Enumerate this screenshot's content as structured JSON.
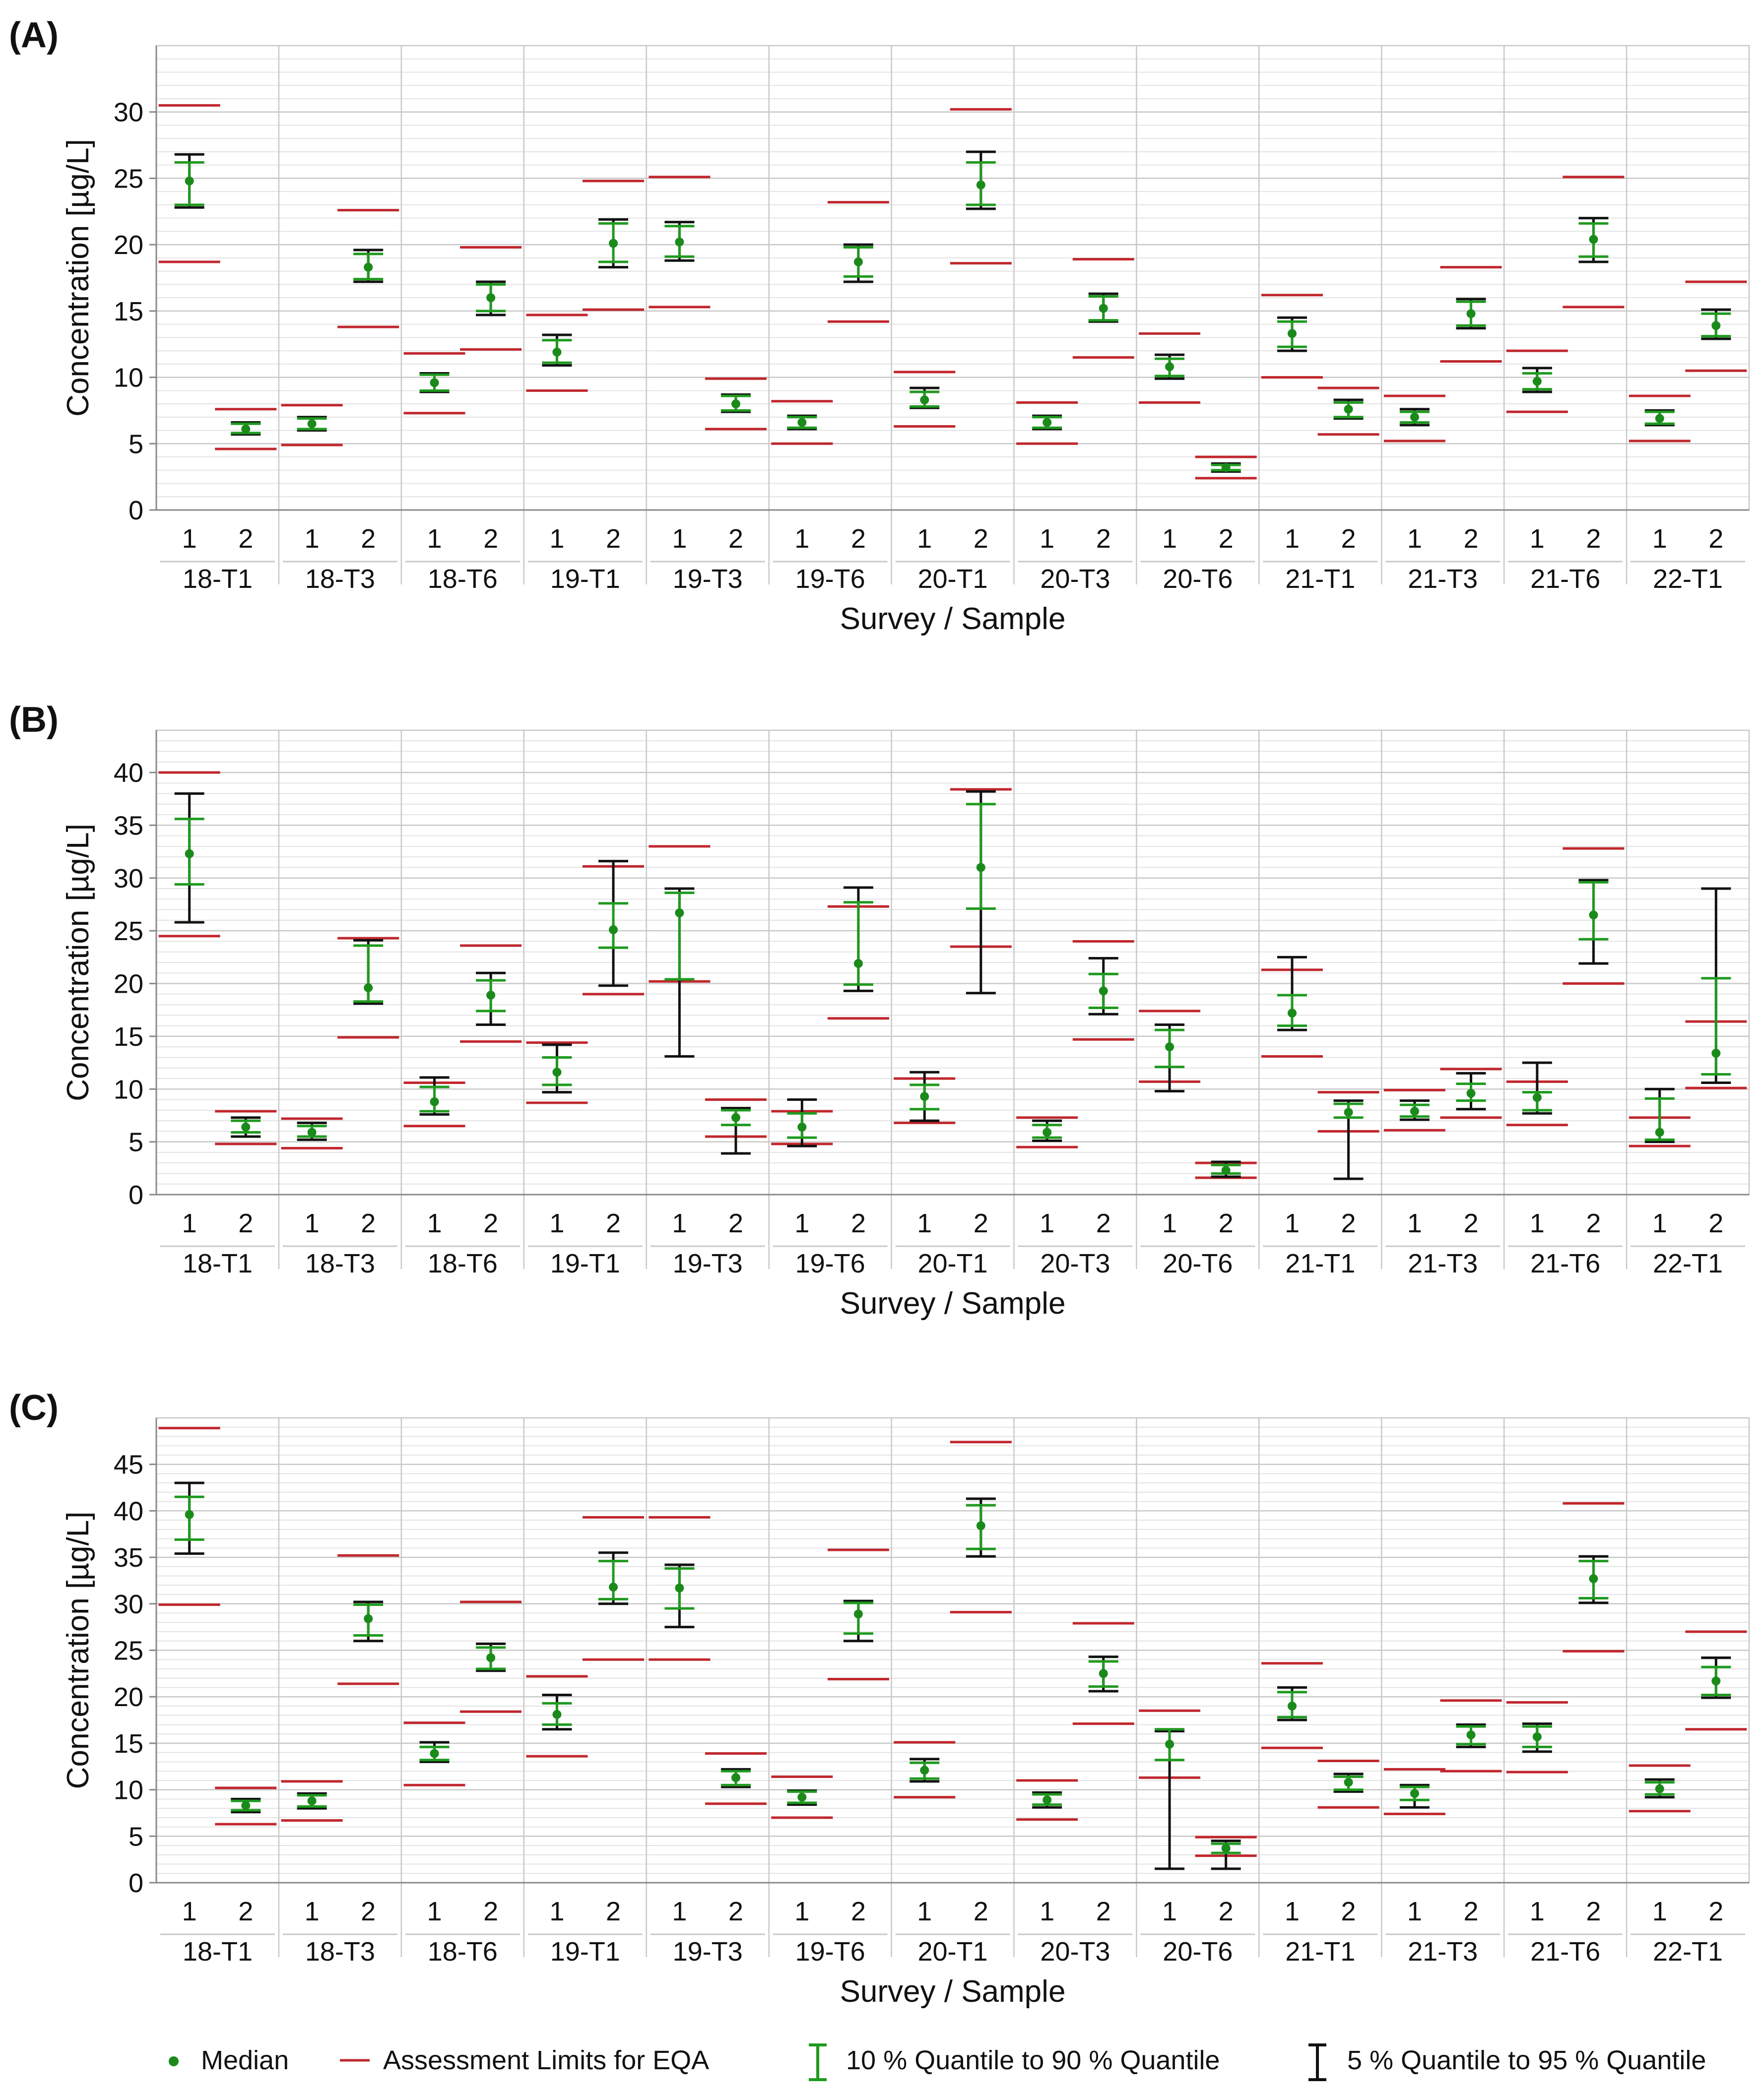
{
  "colors": {
    "median": "#1a8a1a",
    "q10_90": "#1f9a1f",
    "q5_95": "#111111",
    "limits": "#c0272d",
    "grid": "#c8c8c8",
    "axis": "#888888",
    "text": "#111111"
  },
  "legend": {
    "median": "Median",
    "limits": "Assessment Limits for EQA",
    "q10_90": "10 % Quantile to 90 % Quantile",
    "q5_95": "5 % Quantile to 95 % Quantile"
  },
  "chart_data": [
    {
      "type": "errorbar",
      "panel_label": "(A)",
      "ylabel": "Concentration [µg/L]",
      "xlabel": "Survey / Sample",
      "ylim": [
        0,
        35
      ],
      "yticks": [
        0,
        5,
        10,
        15,
        20,
        25,
        30
      ],
      "sample_labels": [
        "1",
        "2"
      ],
      "groups": [
        "18-T1",
        "18-T3",
        "18-T6",
        "19-T1",
        "19-T3",
        "19-T6",
        "20-T1",
        "20-T3",
        "20-T6",
        "21-T1",
        "21-T3",
        "21-T6",
        "22-T1"
      ],
      "points": [
        {
          "median": 24.8,
          "q10": 23.0,
          "q90": 26.2,
          "q5": 22.8,
          "q95": 26.8,
          "lo": 18.7,
          "hi": 30.5
        },
        {
          "median": 6.1,
          "q10": 5.8,
          "q90": 6.5,
          "q5": 5.7,
          "q95": 6.6,
          "lo": 4.6,
          "hi": 7.6
        },
        {
          "median": 6.5,
          "q10": 6.1,
          "q90": 6.9,
          "q5": 6.0,
          "q95": 7.0,
          "lo": 4.9,
          "hi": 7.9
        },
        {
          "median": 18.3,
          "q10": 17.4,
          "q90": 19.3,
          "q5": 17.2,
          "q95": 19.6,
          "lo": 13.8,
          "hi": 22.6
        },
        {
          "median": 9.6,
          "q10": 9.0,
          "q90": 10.2,
          "q5": 8.9,
          "q95": 10.3,
          "lo": 7.3,
          "hi": 11.8
        },
        {
          "median": 16.0,
          "q10": 15.0,
          "q90": 17.0,
          "q5": 14.7,
          "q95": 17.2,
          "lo": 12.1,
          "hi": 19.8
        },
        {
          "median": 11.9,
          "q10": 11.1,
          "q90": 12.8,
          "q5": 10.9,
          "q95": 13.2,
          "lo": 9.0,
          "hi": 14.7
        },
        {
          "median": 20.1,
          "q10": 18.7,
          "q90": 21.6,
          "q5": 18.3,
          "q95": 21.9,
          "lo": 15.1,
          "hi": 24.8
        },
        {
          "median": 20.2,
          "q10": 19.1,
          "q90": 21.4,
          "q5": 18.8,
          "q95": 21.7,
          "lo": 15.3,
          "hi": 25.1
        },
        {
          "median": 8.0,
          "q10": 7.5,
          "q90": 8.6,
          "q5": 7.4,
          "q95": 8.7,
          "lo": 6.1,
          "hi": 9.9
        },
        {
          "median": 6.6,
          "q10": 6.2,
          "q90": 7.0,
          "q5": 6.1,
          "q95": 7.1,
          "lo": 5.0,
          "hi": 8.2
        },
        {
          "median": 18.7,
          "q10": 17.6,
          "q90": 19.8,
          "q5": 17.2,
          "q95": 20.0,
          "lo": 14.2,
          "hi": 23.2
        },
        {
          "median": 8.3,
          "q10": 7.8,
          "q90": 8.9,
          "q5": 7.7,
          "q95": 9.2,
          "lo": 6.3,
          "hi": 10.4
        },
        {
          "median": 24.5,
          "q10": 23.0,
          "q90": 26.2,
          "q5": 22.7,
          "q95": 27.0,
          "lo": 18.6,
          "hi": 30.2
        },
        {
          "median": 6.6,
          "q10": 6.2,
          "q90": 7.0,
          "q5": 6.1,
          "q95": 7.1,
          "lo": 5.0,
          "hi": 8.1
        },
        {
          "median": 15.2,
          "q10": 14.3,
          "q90": 16.1,
          "q5": 14.2,
          "q95": 16.3,
          "lo": 11.5,
          "hi": 18.9
        },
        {
          "median": 10.8,
          "q10": 10.1,
          "q90": 11.4,
          "q5": 9.9,
          "q95": 11.7,
          "lo": 8.1,
          "hi": 13.3
        },
        {
          "median": 3.2,
          "q10": 3.0,
          "q90": 3.4,
          "q5": 2.9,
          "q95": 3.5,
          "lo": 2.4,
          "hi": 4.0
        },
        {
          "median": 13.3,
          "q10": 12.3,
          "q90": 14.2,
          "q5": 12.0,
          "q95": 14.5,
          "lo": 10.0,
          "hi": 16.2
        },
        {
          "median": 7.6,
          "q10": 7.0,
          "q90": 8.1,
          "q5": 6.9,
          "q95": 8.3,
          "lo": 5.7,
          "hi": 9.2
        },
        {
          "median": 7.0,
          "q10": 6.6,
          "q90": 7.4,
          "q5": 6.4,
          "q95": 7.6,
          "lo": 5.2,
          "hi": 8.6
        },
        {
          "median": 14.8,
          "q10": 13.9,
          "q90": 15.7,
          "q5": 13.7,
          "q95": 15.9,
          "lo": 11.2,
          "hi": 18.3
        },
        {
          "median": 9.7,
          "q10": 9.1,
          "q90": 10.3,
          "q5": 8.9,
          "q95": 10.7,
          "lo": 7.4,
          "hi": 12.0
        },
        {
          "median": 20.4,
          "q10": 19.1,
          "q90": 21.6,
          "q5": 18.7,
          "q95": 22.0,
          "lo": 15.3,
          "hi": 25.1
        },
        {
          "median": 6.9,
          "q10": 6.5,
          "q90": 7.4,
          "q5": 6.4,
          "q95": 7.5,
          "lo": 5.2,
          "hi": 8.6
        },
        {
          "median": 13.9,
          "q10": 13.1,
          "q90": 14.8,
          "q5": 12.9,
          "q95": 15.1,
          "lo": 10.5,
          "hi": 17.2
        }
      ]
    },
    {
      "type": "errorbar",
      "panel_label": "(B)",
      "ylabel": "Concentration [µg/L]",
      "xlabel": "Survey / Sample",
      "ylim": [
        0,
        44
      ],
      "yticks": [
        0,
        5,
        10,
        15,
        20,
        25,
        30,
        35,
        40
      ],
      "sample_labels": [
        "1",
        "2"
      ],
      "groups": [
        "18-T1",
        "18-T3",
        "18-T6",
        "19-T1",
        "19-T3",
        "19-T6",
        "20-T1",
        "20-T3",
        "20-T6",
        "21-T1",
        "21-T3",
        "21-T6",
        "22-T1"
      ],
      "points": [
        {
          "median": 32.3,
          "q10": 29.4,
          "q90": 35.6,
          "q5": 25.8,
          "q95": 38.0,
          "lo": 24.5,
          "hi": 40.0
        },
        {
          "median": 6.4,
          "q10": 5.9,
          "q90": 7.0,
          "q5": 5.5,
          "q95": 7.3,
          "lo": 4.8,
          "hi": 7.9
        },
        {
          "median": 5.9,
          "q10": 5.5,
          "q90": 6.5,
          "q5": 5.2,
          "q95": 6.8,
          "lo": 4.4,
          "hi": 7.2
        },
        {
          "median": 19.6,
          "q10": 18.3,
          "q90": 23.6,
          "q5": 18.1,
          "q95": 24.1,
          "lo": 14.9,
          "hi": 24.3
        },
        {
          "median": 8.8,
          "q10": 7.9,
          "q90": 10.2,
          "q5": 7.6,
          "q95": 11.1,
          "lo": 6.5,
          "hi": 10.6
        },
        {
          "median": 18.9,
          "q10": 17.4,
          "q90": 20.3,
          "q5": 16.1,
          "q95": 21.0,
          "lo": 14.5,
          "hi": 23.6
        },
        {
          "median": 11.6,
          "q10": 10.4,
          "q90": 13.0,
          "q5": 9.7,
          "q95": 14.2,
          "lo": 8.7,
          "hi": 14.4
        },
        {
          "median": 25.1,
          "q10": 23.4,
          "q90": 27.6,
          "q5": 19.8,
          "q95": 31.6,
          "lo": 19.0,
          "hi": 31.1
        },
        {
          "median": 26.7,
          "q10": 20.4,
          "q90": 28.6,
          "q5": 13.1,
          "q95": 29.0,
          "lo": 20.2,
          "hi": 33.0
        },
        {
          "median": 7.3,
          "q10": 6.6,
          "q90": 8.0,
          "q5": 3.9,
          "q95": 8.2,
          "lo": 5.5,
          "hi": 9.0
        },
        {
          "median": 6.4,
          "q10": 5.4,
          "q90": 7.7,
          "q5": 4.6,
          "q95": 9.0,
          "lo": 4.8,
          "hi": 7.9
        },
        {
          "median": 21.9,
          "q10": 19.9,
          "q90": 27.7,
          "q5": 19.3,
          "q95": 29.1,
          "lo": 16.7,
          "hi": 27.3
        },
        {
          "median": 9.3,
          "q10": 8.1,
          "q90": 10.4,
          "q5": 7.0,
          "q95": 11.6,
          "lo": 6.8,
          "hi": 11.0
        },
        {
          "median": 31.0,
          "q10": 27.1,
          "q90": 37.0,
          "q5": 19.1,
          "q95": 38.2,
          "lo": 23.5,
          "hi": 38.4
        },
        {
          "median": 5.9,
          "q10": 5.4,
          "q90": 6.6,
          "q5": 5.1,
          "q95": 7.0,
          "lo": 4.5,
          "hi": 7.3
        },
        {
          "median": 19.3,
          "q10": 17.7,
          "q90": 20.9,
          "q5": 17.1,
          "q95": 22.4,
          "lo": 14.7,
          "hi": 24.0
        },
        {
          "median": 14.0,
          "q10": 12.1,
          "q90": 15.6,
          "q5": 9.8,
          "q95": 16.1,
          "lo": 10.7,
          "hi": 17.4
        },
        {
          "median": 2.3,
          "q10": 2.0,
          "q90": 2.8,
          "q5": 1.7,
          "q95": 3.1,
          "lo": 1.6,
          "hi": 3.0
        },
        {
          "median": 17.2,
          "q10": 16.0,
          "q90": 18.9,
          "q5": 15.6,
          "q95": 22.5,
          "lo": 13.1,
          "hi": 21.3
        },
        {
          "median": 7.8,
          "q10": 7.3,
          "q90": 8.6,
          "q5": 1.5,
          "q95": 8.9,
          "lo": 6.0,
          "hi": 9.7
        },
        {
          "median": 7.9,
          "q10": 7.4,
          "q90": 8.5,
          "q5": 7.1,
          "q95": 8.9,
          "lo": 6.1,
          "hi": 9.9
        },
        {
          "median": 9.6,
          "q10": 8.9,
          "q90": 10.5,
          "q5": 8.1,
          "q95": 11.5,
          "lo": 7.3,
          "hi": 11.9
        },
        {
          "median": 9.2,
          "q10": 8.0,
          "q90": 9.7,
          "q5": 7.7,
          "q95": 12.5,
          "lo": 6.6,
          "hi": 10.7
        },
        {
          "median": 26.5,
          "q10": 24.2,
          "q90": 29.6,
          "q5": 21.9,
          "q95": 29.8,
          "lo": 20.0,
          "hi": 32.8
        },
        {
          "median": 5.9,
          "q10": 5.2,
          "q90": 9.1,
          "q5": 5.0,
          "q95": 10.0,
          "lo": 4.6,
          "hi": 7.3
        },
        {
          "median": 13.4,
          "q10": 11.4,
          "q90": 20.5,
          "q5": 10.6,
          "q95": 29.0,
          "lo": 10.1,
          "hi": 16.4
        }
      ]
    },
    {
      "type": "errorbar",
      "panel_label": "(C)",
      "ylabel": "Concentration [µg/L]",
      "xlabel": "Survey / Sample",
      "ylim": [
        0,
        50
      ],
      "yticks": [
        0,
        5,
        10,
        15,
        20,
        25,
        30,
        35,
        40,
        45
      ],
      "sample_labels": [
        "1",
        "2"
      ],
      "groups": [
        "18-T1",
        "18-T3",
        "18-T6",
        "19-T1",
        "19-T3",
        "19-T6",
        "20-T1",
        "20-T3",
        "20-T6",
        "21-T1",
        "21-T3",
        "21-T6",
        "22-T1"
      ],
      "points": [
        {
          "median": 39.6,
          "q10": 36.9,
          "q90": 41.5,
          "q5": 35.4,
          "q95": 43.0,
          "lo": 29.9,
          "hi": 48.9
        },
        {
          "median": 8.3,
          "q10": 7.8,
          "q90": 8.8,
          "q5": 7.6,
          "q95": 9.0,
          "lo": 6.3,
          "hi": 10.2
        },
        {
          "median": 8.8,
          "q10": 8.2,
          "q90": 9.4,
          "q5": 8.0,
          "q95": 9.6,
          "lo": 6.7,
          "hi": 10.9
        },
        {
          "median": 28.4,
          "q10": 26.6,
          "q90": 29.9,
          "q5": 26.0,
          "q95": 30.2,
          "lo": 21.4,
          "hi": 35.2
        },
        {
          "median": 13.9,
          "q10": 13.2,
          "q90": 14.6,
          "q5": 13.0,
          "q95": 15.1,
          "lo": 10.5,
          "hi": 17.2
        },
        {
          "median": 24.2,
          "q10": 23.0,
          "q90": 25.3,
          "q5": 22.8,
          "q95": 25.7,
          "lo": 18.4,
          "hi": 30.2
        },
        {
          "median": 18.1,
          "q10": 17.0,
          "q90": 19.3,
          "q5": 16.5,
          "q95": 20.2,
          "lo": 13.6,
          "hi": 22.2
        },
        {
          "median": 31.8,
          "q10": 30.5,
          "q90": 34.6,
          "q5": 30.0,
          "q95": 35.5,
          "lo": 24.0,
          "hi": 39.3
        },
        {
          "median": 31.7,
          "q10": 29.5,
          "q90": 33.8,
          "q5": 27.5,
          "q95": 34.2,
          "lo": 24.0,
          "hi": 39.3
        },
        {
          "median": 11.3,
          "q10": 10.5,
          "q90": 12.0,
          "q5": 10.3,
          "q95": 12.2,
          "lo": 8.5,
          "hi": 13.9
        },
        {
          "median": 9.2,
          "q10": 8.6,
          "q90": 9.8,
          "q5": 8.4,
          "q95": 9.9,
          "lo": 7.0,
          "hi": 11.4
        },
        {
          "median": 28.9,
          "q10": 26.8,
          "q90": 30.1,
          "q5": 26.0,
          "q95": 30.3,
          "lo": 21.9,
          "hi": 35.8
        },
        {
          "median": 12.1,
          "q10": 11.2,
          "q90": 12.9,
          "q5": 10.9,
          "q95": 13.3,
          "lo": 9.2,
          "hi": 15.1
        },
        {
          "median": 38.4,
          "q10": 35.9,
          "q90": 40.6,
          "q5": 35.1,
          "q95": 41.3,
          "lo": 29.1,
          "hi": 47.4
        },
        {
          "median": 8.9,
          "q10": 8.4,
          "q90": 9.5,
          "q5": 8.1,
          "q95": 9.7,
          "lo": 6.8,
          "hi": 11.0
        },
        {
          "median": 22.5,
          "q10": 21.1,
          "q90": 23.8,
          "q5": 20.6,
          "q95": 24.3,
          "lo": 17.1,
          "hi": 27.9
        },
        {
          "median": 14.9,
          "q10": 13.2,
          "q90": 16.5,
          "q5": 1.5,
          "q95": 16.3,
          "lo": 11.3,
          "hi": 18.5
        },
        {
          "median": 3.7,
          "q10": 3.2,
          "q90": 4.2,
          "q5": 1.5,
          "q95": 4.5,
          "lo": 2.9,
          "hi": 4.9
        },
        {
          "median": 19.0,
          "q10": 17.8,
          "q90": 20.5,
          "q5": 17.5,
          "q95": 21.0,
          "lo": 14.5,
          "hi": 23.6
        },
        {
          "median": 10.8,
          "q10": 10.0,
          "q90": 11.4,
          "q5": 9.8,
          "q95": 11.7,
          "lo": 8.1,
          "hi": 13.1
        },
        {
          "median": 9.6,
          "q10": 8.9,
          "q90": 10.3,
          "q5": 8.1,
          "q95": 10.5,
          "lo": 7.4,
          "hi": 12.2
        },
        {
          "median": 15.9,
          "q10": 14.9,
          "q90": 16.8,
          "q5": 14.6,
          "q95": 17.0,
          "lo": 12.0,
          "hi": 19.6
        },
        {
          "median": 15.7,
          "q10": 14.6,
          "q90": 16.8,
          "q5": 14.1,
          "q95": 17.1,
          "lo": 11.9,
          "hi": 19.4
        },
        {
          "median": 32.7,
          "q10": 30.6,
          "q90": 34.6,
          "q5": 30.1,
          "q95": 35.1,
          "lo": 24.9,
          "hi": 40.8
        },
        {
          "median": 10.1,
          "q10": 9.5,
          "q90": 10.8,
          "q5": 9.2,
          "q95": 11.1,
          "lo": 7.7,
          "hi": 12.6
        },
        {
          "median": 21.7,
          "q10": 20.2,
          "q90": 23.2,
          "q5": 19.9,
          "q95": 24.2,
          "lo": 16.5,
          "hi": 27.0
        }
      ]
    }
  ]
}
